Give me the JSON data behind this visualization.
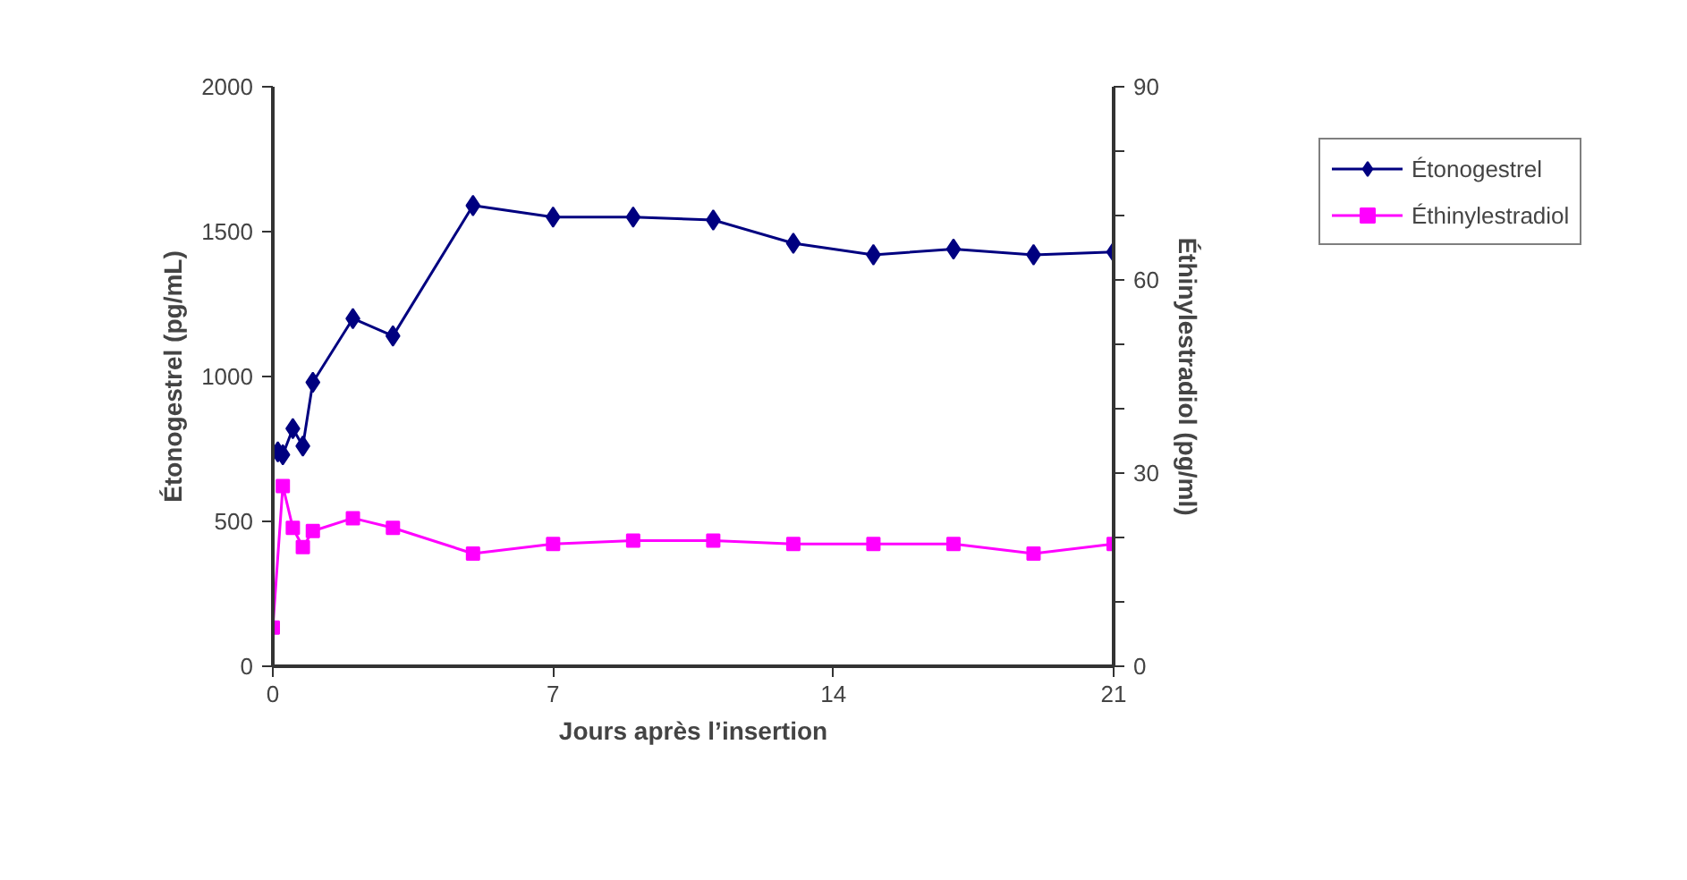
{
  "chart_data": {
    "type": "line",
    "xlabel": "Jours après l’insertion",
    "ylabel": "Étonogestrel (pg/mL)",
    "y2label": "Éthinylestradiol (pg/ml)",
    "xlim": [
      0,
      21
    ],
    "xticks": [
      0,
      7,
      14,
      21
    ],
    "ylim": [
      0,
      2000
    ],
    "yticks": [
      0,
      500,
      1000,
      1500,
      2000
    ],
    "y2lim": [
      0,
      90
    ],
    "y2ticks": [
      0,
      {
        "value": 10,
        "label": null
      },
      {
        "value": 20,
        "label": null
      },
      30,
      {
        "value": 40,
        "label": null
      },
      {
        "value": 50,
        "label": null
      },
      60,
      {
        "value": 70,
        "label": null
      },
      {
        "value": 80,
        "label": null
      },
      90
    ],
    "grid": false,
    "legend": "right",
    "line_style": "solid",
    "series": [
      {
        "name": "Étonogestrel",
        "color": "#000080",
        "marker": "diamond",
        "x": [
          0.125,
          0.25,
          0.5,
          0.75,
          1,
          2,
          3,
          5,
          7,
          9,
          11,
          13,
          15,
          17,
          19,
          21
        ],
        "values": [
          740,
          730,
          820,
          760,
          980,
          1200,
          1140,
          1590,
          1550,
          1550,
          1540,
          1460,
          1420,
          1440,
          1420,
          1430
        ]
      },
      {
        "name": "Éthinylestradiol",
        "color": "#ff00ff",
        "marker": "square",
        "axis": "y2",
        "x": [
          0,
          0.25,
          0.5,
          0.75,
          1,
          2,
          3,
          5,
          7,
          9,
          11,
          13,
          15,
          17,
          19,
          21
        ],
        "values": [
          6,
          28,
          21.5,
          18.5,
          21,
          23,
          21.5,
          17.5,
          19,
          19.5,
          19.5,
          19,
          19,
          19,
          17.5,
          19
        ]
      }
    ]
  }
}
